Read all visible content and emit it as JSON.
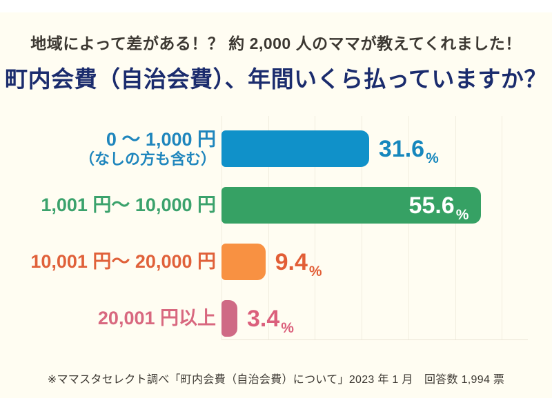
{
  "canvas": {
    "page_background": "#FFFFFF",
    "background": "#FFFDF2"
  },
  "header": {
    "subtitle": "地域によって差がある！？ 約 2,000 人のママが教えてくれました！",
    "subtitle_color": "#3C3832",
    "title": "町内会費（自治会費）、年間いくら払っていますか？",
    "title_color": "#1B2C6D"
  },
  "chart_data": {
    "type": "bar",
    "orientation": "horizontal",
    "title": "町内会費（自治会費）、年間いくら払っていますか？",
    "unit": "%",
    "categories": [
      "0 ～ 1,000 円（なしの方も含む）",
      "1,001 円～ 10,000 円",
      "10,001 円～ 20,000 円",
      "20,001 円以上"
    ],
    "values": [
      31.6,
      55.6,
      9.4,
      3.4
    ],
    "axis": {
      "min": 0,
      "max": 60,
      "grid_step": 10,
      "grid_visible": true,
      "grid_color": "#F1EDDF",
      "axis_line_color": "#EAE5D6"
    },
    "legend": "none",
    "rows": [
      {
        "label": "0 ～ 1,000 円",
        "label_note": "（なしの方も含む）",
        "value": 31.6,
        "value_text": "31.6",
        "label_color": "#1F86BD",
        "bar_color": "#1091C9",
        "value_color": "#1687BD",
        "value_position": "outside"
      },
      {
        "label": "1,001 円～ 10,000 円",
        "label_note": "",
        "value": 55.6,
        "value_text": "55.6",
        "label_color": "#3BA26C",
        "bar_color": "#36A164",
        "value_color": "#FFFFFF",
        "value_position": "inside"
      },
      {
        "label": "10,001 円～ 20,000 円",
        "label_note": "",
        "value": 9.4,
        "value_text": "9.4",
        "label_color": "#E0613A",
        "bar_color": "#F89142",
        "value_color": "#E25E36",
        "value_position": "outside"
      },
      {
        "label": "20,001 円以上",
        "label_note": "",
        "value": 3.4,
        "value_text": "3.4",
        "label_color": "#D8687F",
        "bar_color": "#CF6A85",
        "value_color": "#DB607C",
        "value_position": "outside"
      }
    ]
  },
  "footer": {
    "source": "※ママスタセレクト調べ「町内会費（自治会費）について」2023 年 1 月　回答数 1,994 票",
    "color": "#3C3832"
  }
}
